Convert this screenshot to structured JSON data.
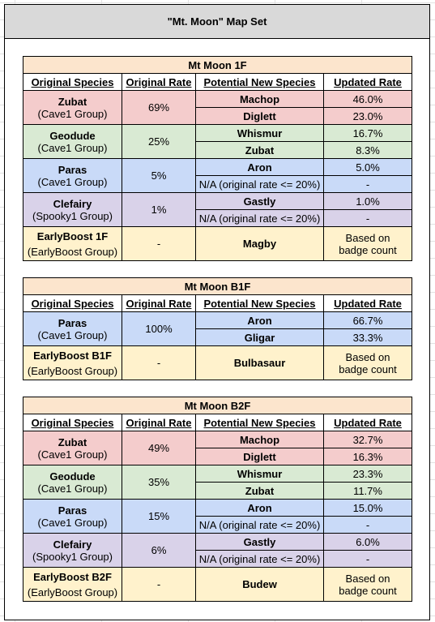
{
  "title": "\"Mt. Moon\" Map Set",
  "headers": {
    "original_species": "Original Species",
    "original_rate": "Original Rate",
    "potential_new_species": "Potential New Species",
    "updated_rate": "Updated Rate"
  },
  "colors": {
    "cave_red": "#f4cccc",
    "cave_green": "#d9ead3",
    "cave_blue": "#c9daf8",
    "spooky_purple": "#d9d2e9",
    "earlyboost_yellow": "#fff2cc",
    "floor_header": "#fce5cd",
    "title_bar": "#d9d9d9"
  },
  "tables": [
    {
      "floor": "Mt Moon 1F",
      "groups": [
        {
          "species": "Zubat",
          "group": "(Cave1 Group)",
          "rate": "69%",
          "rows": [
            {
              "new": "Machop",
              "updated": "46.0%"
            },
            {
              "new": "Diglett",
              "updated": "23.0%"
            }
          ]
        },
        {
          "species": "Geodude",
          "group": "(Cave1 Group)",
          "rate": "25%",
          "rows": [
            {
              "new": "Whismur",
              "updated": "16.7%"
            },
            {
              "new": "Zubat",
              "updated": "8.3%"
            }
          ]
        },
        {
          "species": "Paras",
          "group": "(Cave1 Group)",
          "rate": "5%",
          "rows": [
            {
              "new": "Aron",
              "updated": "5.0%"
            },
            {
              "new": "N/A (original rate <= 20%)",
              "updated": "-"
            }
          ]
        },
        {
          "species": "Clefairy",
          "group": "(Spooky1 Group)",
          "rate": "1%",
          "rows": [
            {
              "new": "Gastly",
              "updated": "1.0%"
            },
            {
              "new": "N/A (original rate <= 20%)",
              "updated": "-"
            }
          ]
        }
      ],
      "earlyboost": {
        "species": "EarlyBoost 1F",
        "group": "(EarlyBoost Group)",
        "rate": "-",
        "new": "Magby",
        "updated_line1": "Based on",
        "updated_line2": "badge count"
      }
    },
    {
      "floor": "Mt Moon B1F",
      "groups": [
        {
          "species": "Paras",
          "group": "(Cave1 Group)",
          "rate": "100%",
          "rows": [
            {
              "new": "Aron",
              "updated": "66.7%"
            },
            {
              "new": "Gligar",
              "updated": "33.3%"
            }
          ]
        }
      ],
      "earlyboost": {
        "species": "EarlyBoost B1F",
        "group": "(EarlyBoost Group)",
        "rate": "-",
        "new": "Bulbasaur",
        "updated_line1": "Based on",
        "updated_line2": "badge count"
      }
    },
    {
      "floor": "Mt Moon B2F",
      "groups": [
        {
          "species": "Zubat",
          "group": "(Cave1 Group)",
          "rate": "49%",
          "rows": [
            {
              "new": "Machop",
              "updated": "32.7%"
            },
            {
              "new": "Diglett",
              "updated": "16.3%"
            }
          ]
        },
        {
          "species": "Geodude",
          "group": "(Cave1 Group)",
          "rate": "35%",
          "rows": [
            {
              "new": "Whismur",
              "updated": "23.3%"
            },
            {
              "new": "Zubat",
              "updated": "11.7%"
            }
          ]
        },
        {
          "species": "Paras",
          "group": "(Cave1 Group)",
          "rate": "15%",
          "rows": [
            {
              "new": "Aron",
              "updated": "15.0%"
            },
            {
              "new": "N/A (original rate <= 20%)",
              "updated": "-"
            }
          ]
        },
        {
          "species": "Clefairy",
          "group": "(Spooky1 Group)",
          "rate": "6%",
          "rows": [
            {
              "new": "Gastly",
              "updated": "6.0%"
            },
            {
              "new": "N/A (original rate <= 20%)",
              "updated": "-"
            }
          ]
        }
      ],
      "earlyboost": {
        "species": "EarlyBoost B2F",
        "group": "(EarlyBoost Group)",
        "rate": "-",
        "new": "Budew",
        "updated_line1": "Based on",
        "updated_line2": "badge count"
      }
    }
  ]
}
